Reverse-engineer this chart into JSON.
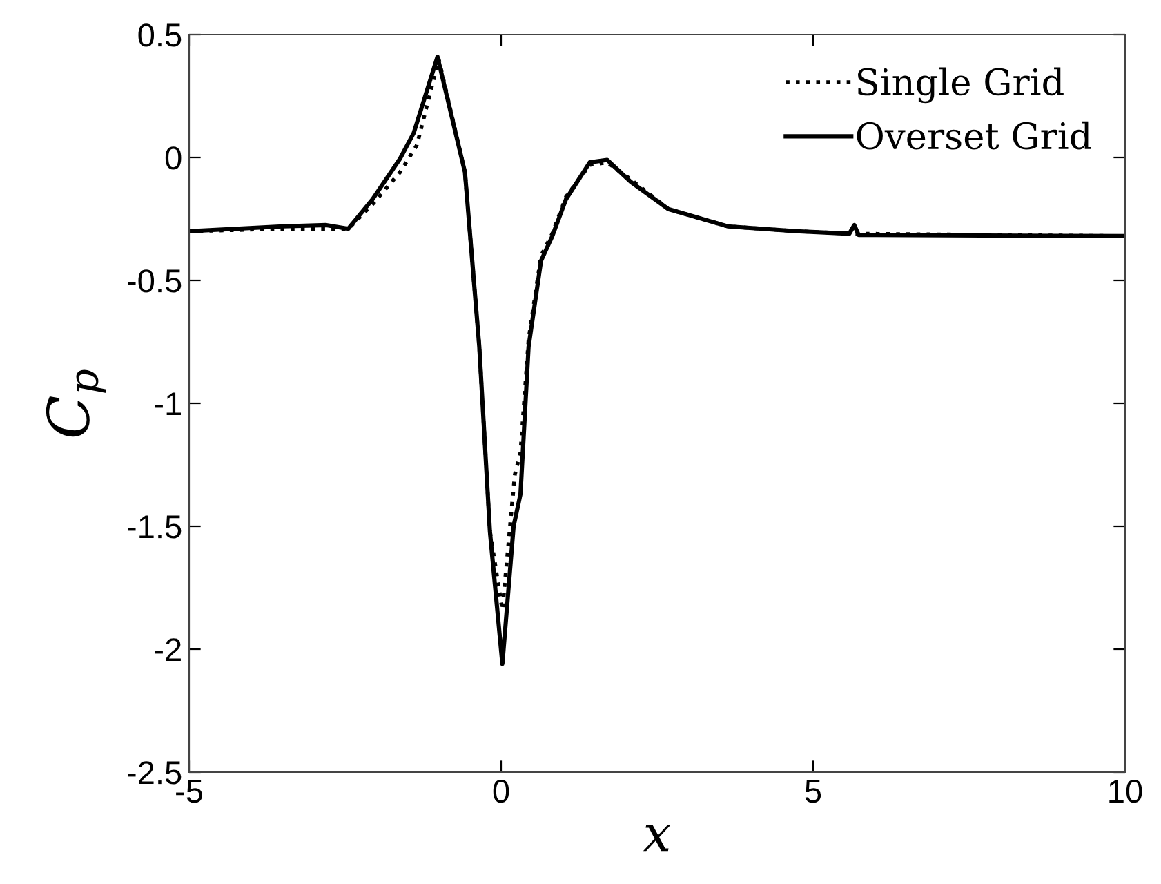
{
  "chart_data": {
    "type": "line",
    "xlabel": "x",
    "ylabel": "C$_{p}$",
    "xlim": [
      -5,
      10
    ],
    "ylim": [
      -2.5,
      0.5
    ],
    "xticks": [
      -5,
      0,
      5,
      10
    ],
    "yticks": [
      {
        "value": -2.5,
        "label": "-2.5"
      },
      {
        "value": -2,
        "label": "-2"
      },
      {
        "value": -1.5,
        "label": "-1.5"
      },
      {
        "value": -1,
        "label": "-1"
      },
      {
        "value": -0.5,
        "label": "-0.5"
      },
      0,
      0.5
    ],
    "grid": false,
    "legend": "top right",
    "marker": "none",
    "series": [
      {
        "name": "Single Grid",
        "color": "#000000",
        "line_style": "dotted",
        "x": [
          -5,
          -3.5,
          -2.8,
          -2.45,
          -2.06,
          -1.62,
          -1.35,
          -1.0,
          -0.58,
          -0.35,
          -0.18,
          0.02,
          0.15,
          0.22,
          0.31,
          0.44,
          0.64,
          0.82,
          1.04,
          1.42,
          1.7,
          2.08,
          2.68,
          3.63,
          4.73,
          5.66,
          10
        ],
        "values": [
          -0.3,
          -0.29,
          -0.29,
          -0.29,
          -0.19,
          -0.06,
          0.05,
          0.4,
          -0.06,
          -0.77,
          -1.52,
          -1.84,
          -1.48,
          -1.29,
          -1.2,
          -0.74,
          -0.4,
          -0.31,
          -0.16,
          -0.03,
          -0.02,
          -0.09,
          -0.21,
          -0.28,
          -0.3,
          -0.31,
          -0.32
        ]
      },
      {
        "name": "Overset Grid",
        "color": "#000000",
        "line_style": "solid",
        "x": [
          -5,
          -3.5,
          -2.8,
          -2.45,
          -2.06,
          -1.62,
          -1.4,
          -1.02,
          -0.58,
          -0.35,
          -0.18,
          0.02,
          0.2,
          0.31,
          0.44,
          0.64,
          0.82,
          1.04,
          1.42,
          1.7,
          2.08,
          2.68,
          3.63,
          4.73,
          5.58,
          5.66,
          5.73,
          10
        ],
        "values": [
          -0.3,
          -0.28,
          -0.275,
          -0.29,
          -0.17,
          -0.005,
          0.1,
          0.41,
          -0.06,
          -0.77,
          -1.52,
          -2.06,
          -1.5,
          -1.37,
          -0.77,
          -0.42,
          -0.32,
          -0.17,
          -0.02,
          -0.01,
          -0.1,
          -0.21,
          -0.28,
          -0.3,
          -0.31,
          -0.275,
          -0.315,
          -0.32
        ]
      }
    ]
  }
}
